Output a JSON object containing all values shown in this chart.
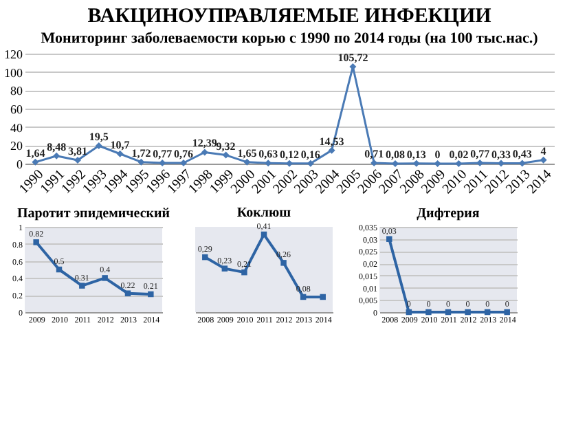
{
  "chart_data": [
    {
      "type": "line",
      "title": "ВАКЦИНОУПРАВЛЯЕМЫЕ ИНФЕКЦИИ",
      "subtitle": "Мониторинг заболеваемости корью  с 1990 по 2014 годы  (на 100 тыс.нас.)",
      "categories": [
        "1990",
        "1991",
        "1992",
        "1993",
        "1994",
        "1995",
        "1996",
        "1997",
        "1998",
        "1999",
        "2000",
        "2001",
        "2002",
        "2003",
        "2004",
        "2005",
        "2006",
        "2007",
        "2008",
        "2009",
        "2010",
        "2011",
        "2012",
        "2013",
        "2014"
      ],
      "values": [
        1.64,
        8.48,
        3.81,
        19.5,
        10.7,
        1.72,
        0.77,
        0.76,
        12.39,
        9.32,
        1.65,
        0.63,
        0.12,
        0.16,
        14.53,
        105.72,
        0.71,
        0.08,
        0.13,
        0,
        0.02,
        0.77,
        0.33,
        0.43,
        4
      ],
      "value_labels": [
        "1,64",
        "8,48",
        "3,81",
        "19,5",
        "10,7",
        "1,72",
        "0,77",
        "0,76",
        "12,39",
        "9,32",
        "1,65",
        "0,63",
        "0,12",
        "0,16",
        "14,53",
        "105,72",
        "0,71",
        "0,08",
        "0,13",
        "0",
        "0,02",
        "0,77",
        "0,33",
        "0,43",
        "4"
      ],
      "color": "#4a7ab5",
      "ylim": [
        0,
        120
      ],
      "yticks": [
        0,
        20,
        40,
        60,
        80,
        100,
        120
      ],
      "grid": "y",
      "marker": "diamond",
      "line_style": "solid"
    },
    {
      "type": "line",
      "title": "Паротит эпидемический",
      "categories": [
        "2009",
        "2010",
        "2011",
        "2012",
        "2013",
        "2014"
      ],
      "values": [
        0.82,
        0.5,
        0.31,
        0.4,
        0.22,
        0.21
      ],
      "value_labels": [
        "0.82",
        "0.5",
        "0.31",
        "0.4",
        "0.22",
        "0.21"
      ],
      "color": "#2e64a4",
      "ylim": [
        0,
        1
      ],
      "yticks": [
        0,
        0.2,
        0.4,
        0.6,
        0.8,
        1
      ],
      "grid": "y",
      "marker": "square",
      "line_style": "solid"
    },
    {
      "type": "line",
      "title": "Коклюш",
      "categories": [
        "2008",
        "2009",
        "2010",
        "2011",
        "2012",
        "2013",
        "2014"
      ],
      "values": [
        0.29,
        0.23,
        0.21,
        0.41,
        0.26,
        0.08,
        0.08
      ],
      "value_labels": [
        "0,29",
        "0,23",
        "0,21",
        "0,41",
        "0,26",
        "0,08",
        null
      ],
      "color": "#2e64a4",
      "tick_labels": "x",
      "marker": "square",
      "line_style": "solid"
    },
    {
      "type": "line",
      "title": "Дифтерия",
      "categories": [
        "2008",
        "2009",
        "2010",
        "2011",
        "2012",
        "2013",
        "2014"
      ],
      "values": [
        0.03,
        0,
        0,
        0,
        0,
        0,
        0
      ],
      "value_labels": [
        "0,03",
        "0",
        "0",
        "0",
        "0",
        "0",
        "0"
      ],
      "color": "#2e64a4",
      "ylim": [
        0,
        0.035
      ],
      "yticks": [
        0,
        {
          "value": 0.005,
          "label": "0,005"
        },
        {
          "value": 0.01,
          "label": "0,01"
        },
        {
          "value": 0.015,
          "label": "0,015"
        },
        {
          "value": 0.02,
          "label": "0,02"
        },
        {
          "value": 0.025,
          "label": "0,025"
        },
        {
          "value": 0.03,
          "label": "0,03"
        },
        {
          "value": 0.035,
          "label": "0,035"
        }
      ],
      "grid": "y",
      "marker": "square",
      "line_style": "solid"
    }
  ]
}
